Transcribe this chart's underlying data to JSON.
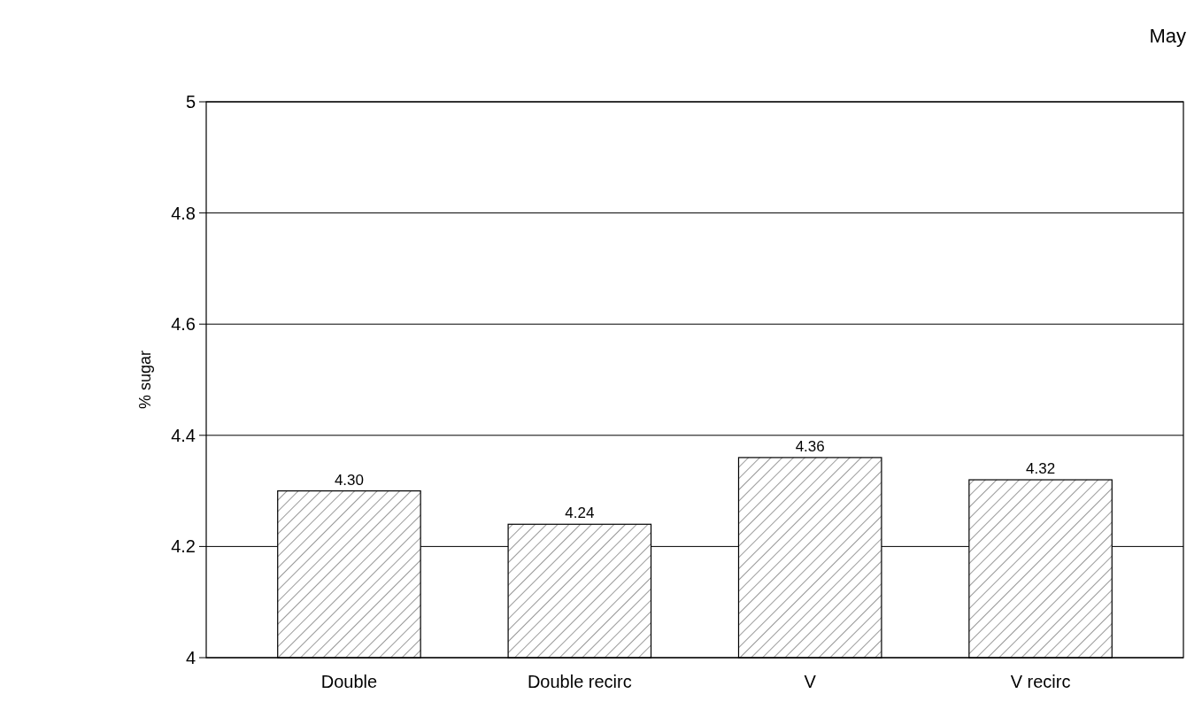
{
  "chart_data": {
    "type": "bar",
    "title": "May",
    "ylabel": "% sugar",
    "categories": [
      "Double",
      "Double recirc",
      "V",
      "V recirc"
    ],
    "values": [
      4.3,
      4.24,
      4.36,
      4.32
    ],
    "value_labels": [
      "4.30",
      "4.24",
      "4.36",
      "4.32"
    ],
    "color": "#000000",
    "ylim": [
      4,
      5
    ],
    "yticks": [
      4,
      4.2,
      4.4,
      4.6,
      4.8,
      5
    ],
    "grid": "y"
  }
}
